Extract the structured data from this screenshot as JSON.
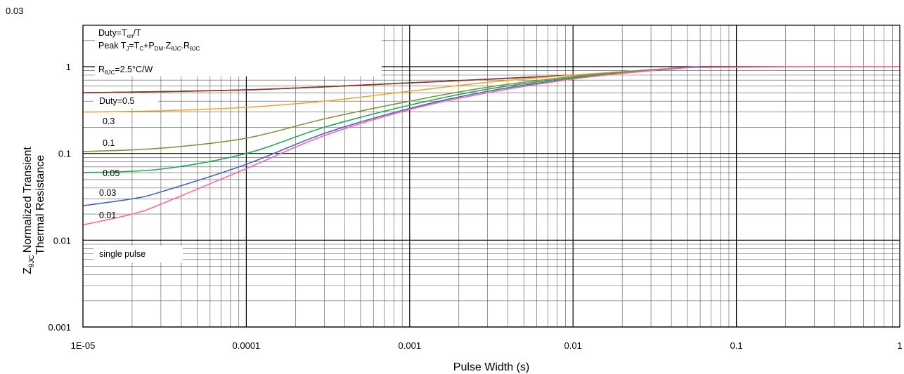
{
  "chart_data": {
    "type": "line",
    "title": "",
    "xlabel": "Pulse Width (s)",
    "ylabel_line1": "Normalized Transient",
    "ylabel_line2": "Thermal Resistance",
    "ylabel_symbol": "Z",
    "ylabel_symbol_sub": "θJC",
    "x_scale": "log",
    "y_scale": "log",
    "xlim": [
      1e-05,
      1
    ],
    "ylim": [
      0.001,
      3
    ],
    "grid": true,
    "x_ticks": [
      {
        "value": 1e-05,
        "label": "1E-05"
      },
      {
        "value": 0.0001,
        "label": "0.0001"
      },
      {
        "value": 0.001,
        "label": "0.001"
      },
      {
        "value": 0.01,
        "label": "0.01"
      },
      {
        "value": 0.1,
        "label": "0.1"
      },
      {
        "value": 1,
        "label": "1"
      }
    ],
    "y_ticks": [
      {
        "value": 0.001,
        "label": "0.001"
      },
      {
        "value": 0.01,
        "label": "0.01"
      },
      {
        "value": 0.1,
        "label": "0.1"
      },
      {
        "value": 1,
        "label": "1"
      }
    ],
    "y_top_label": "0.03",
    "annotations": {
      "duty_prefix": "Duty=T",
      "duty_sub": "on",
      "duty_suffix": "/T",
      "peak_prefix": "Peak T",
      "peak_sub1": "J",
      "peak_mid1": "=T",
      "peak_sub2": "C",
      "peak_mid2": "+P",
      "peak_sub3": "DM",
      "peak_mid3": ".Z",
      "peak_sub4": "θJC",
      "peak_mid4": ".R",
      "peak_sub5": "θJC",
      "r_prefix": "R",
      "r_sub": "θJC",
      "r_suffix": "=2.5°C/W"
    },
    "series": [
      {
        "name": "Duty=0.5",
        "color": "#a52a2a",
        "x": [
          1e-05,
          0.0001,
          0.001,
          0.01,
          0.03,
          0.06
        ],
        "y": [
          0.5,
          0.54,
          0.65,
          0.8,
          0.92,
          1.0
        ]
      },
      {
        "name": "0.3",
        "color": "#8b3a2a",
        "x": [
          1e-05,
          0.0001,
          0.001,
          0.01,
          0.03,
          0.06
        ],
        "y": [
          0.5,
          0.54,
          0.65,
          0.8,
          0.92,
          1.0
        ]
      },
      {
        "name": "0.1",
        "color": "#f0a830",
        "x": [
          1e-05,
          3e-05,
          0.0001,
          0.0003,
          0.001,
          0.003,
          0.01,
          0.03,
          0.06
        ],
        "y": [
          0.3,
          0.31,
          0.34,
          0.4,
          0.52,
          0.66,
          0.8,
          0.92,
          1.0
        ]
      },
      {
        "name": "0.05",
        "color": "#7a9a3a",
        "x": [
          1e-05,
          3e-05,
          0.0001,
          0.0003,
          0.001,
          0.003,
          0.01,
          0.03,
          0.06
        ],
        "y": [
          0.105,
          0.115,
          0.15,
          0.25,
          0.4,
          0.58,
          0.77,
          0.92,
          1.0
        ]
      },
      {
        "name": "0.03",
        "color": "#22aa55",
        "x": [
          1e-05,
          3e-05,
          0.0001,
          0.0003,
          0.001,
          0.003,
          0.01,
          0.03,
          0.06
        ],
        "y": [
          0.06,
          0.066,
          0.1,
          0.2,
          0.36,
          0.55,
          0.75,
          0.91,
          1.0
        ]
      },
      {
        "name": "0.01",
        "color": "#4466cc",
        "x": [
          1e-05,
          2e-05,
          3e-05,
          0.0001,
          0.0003,
          0.001,
          0.003,
          0.01,
          0.03,
          0.06
        ],
        "y": [
          0.025,
          0.03,
          0.036,
          0.075,
          0.17,
          0.33,
          0.52,
          0.73,
          0.9,
          1.0
        ]
      },
      {
        "name": "single pulse",
        "color": "#ff6699",
        "x": [
          1e-05,
          2e-05,
          3e-05,
          0.0001,
          0.0003,
          0.001,
          0.003,
          0.01,
          0.03,
          0.06,
          1
        ],
        "y": [
          0.015,
          0.02,
          0.026,
          0.067,
          0.16,
          0.32,
          0.5,
          0.72,
          0.9,
          0.98,
          1.0
        ]
      }
    ]
  }
}
